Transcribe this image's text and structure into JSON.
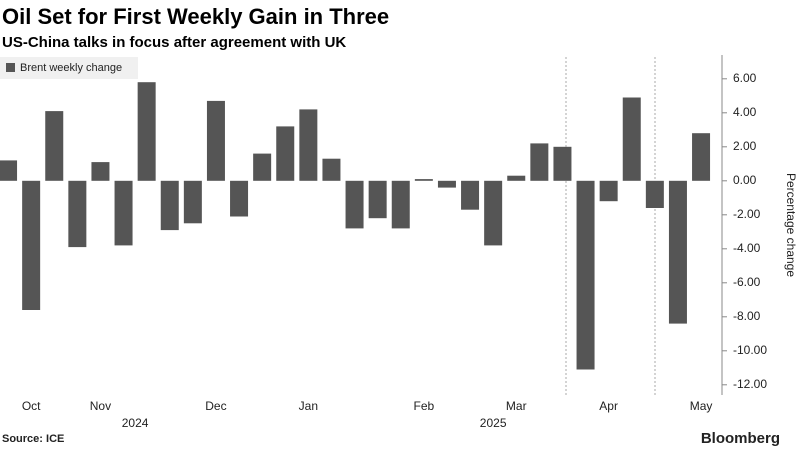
{
  "chart_data": {
    "type": "bar",
    "title": "Oil Set for First Weekly Gain in Three",
    "subtitle": "US-China talks in focus after agreement with UK",
    "legend": "Brent weekly change",
    "y_label": "Percentage change",
    "source": "Source: ICE",
    "brand": "Bloomberg",
    "color": "#555555",
    "categories": [
      null,
      "Oct",
      null,
      null,
      "Nov",
      null,
      null,
      null,
      null,
      "Dec",
      null,
      null,
      null,
      "Jan",
      null,
      null,
      null,
      null,
      "Feb",
      null,
      null,
      null,
      "Mar",
      null,
      null,
      null,
      "Apr",
      null,
      null,
      null,
      "May"
    ],
    "values": [
      1.2,
      -7.6,
      4.1,
      -3.9,
      1.1,
      -3.8,
      5.8,
      -2.9,
      -2.5,
      4.7,
      -2.1,
      1.6,
      3.2,
      4.2,
      1.3,
      -2.8,
      -2.2,
      -2.8,
      0.1,
      -0.4,
      -1.7,
      -3.8,
      0.3,
      2.2,
      2.0,
      -11.1,
      -1.2,
      4.9,
      -1.6,
      -8.4,
      2.8
    ],
    "year_labels": [
      "2024",
      "2025"
    ],
    "ylim": [
      -12.6,
      7.4
    ],
    "yticks": [
      {
        "value": 6,
        "label": "6.00"
      },
      {
        "value": 4,
        "label": "4.00"
      },
      {
        "value": 2,
        "label": "2.00"
      },
      {
        "value": 0,
        "label": "0.00"
      },
      {
        "value": -2,
        "label": "-2.00"
      },
      {
        "value": -4,
        "label": "-4.00"
      },
      {
        "value": -6,
        "label": "-6.00"
      },
      {
        "value": -8,
        "label": "-8.00"
      },
      {
        "value": -10,
        "label": "-10.00"
      },
      {
        "value": -12,
        "label": "-12.00"
      }
    ]
  }
}
